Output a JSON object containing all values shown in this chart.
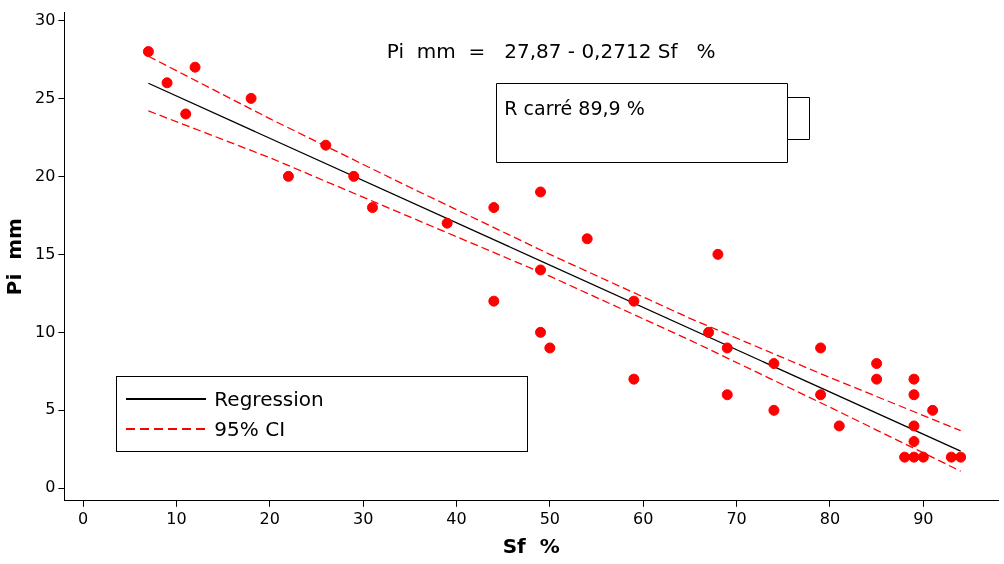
{
  "chart_data": {
    "type": "scatter",
    "xlabel": "Sf  %",
    "ylabel": "Pi  mm",
    "annotations": [
      "Pi  mm  =   27,87 - 0,2712 Sf   %",
      "R carré  89,9 %"
    ],
    "xlim": [
      -2,
      98
    ],
    "xticks": [
      0,
      10,
      20,
      30,
      40,
      50,
      60,
      70,
      80,
      90
    ],
    "ylim": [
      -0.8,
      30.5
    ],
    "yticks": [
      0,
      5,
      10,
      15,
      20,
      25,
      30
    ],
    "grid": false,
    "legend": "bottom left",
    "marker": "circle",
    "series": [
      {
        "type": "scatter",
        "color": "#ff0000",
        "x": [
          7,
          9,
          11,
          12,
          18,
          22,
          26,
          29,
          31,
          39,
          44,
          44,
          49,
          49,
          49,
          50,
          54,
          59,
          59,
          67,
          68,
          69,
          69,
          74,
          74,
          79,
          79,
          81,
          85,
          85,
          88,
          89,
          89,
          89,
          89,
          89,
          90,
          91,
          93,
          94
        ],
        "values": [
          28,
          26,
          24,
          27,
          25,
          20,
          22,
          20,
          18,
          17,
          12,
          18,
          19,
          14,
          10,
          9,
          16,
          12,
          7,
          10,
          15,
          9,
          6,
          8,
          5,
          9,
          6,
          4,
          8,
          7,
          2,
          7,
          6,
          4,
          3,
          2,
          2,
          5,
          2,
          2
        ]
      },
      {
        "type": "line",
        "name": "Regression",
        "color": "#000000",
        "line_style": "solid",
        "marker": "none",
        "x": [
          7,
          94
        ],
        "values": [
          25.97,
          2.38
        ]
      },
      {
        "type": "line",
        "name": "95% CI",
        "color": "#ff0000",
        "line_style": "dashed",
        "marker": "none",
        "x": [
          7,
          20,
          35,
          50,
          65,
          80,
          94
        ],
        "values": [
          27.7,
          23.7,
          19.3,
          15.0,
          10.9,
          7.1,
          3.7
        ]
      },
      {
        "type": "line",
        "color": "#ff0000",
        "line_style": "dashed",
        "marker": "none",
        "x": [
          7,
          20,
          35,
          50,
          65,
          80,
          94
        ],
        "values": [
          24.2,
          21.2,
          17.4,
          13.6,
          9.5,
          5.2,
          1.1
        ]
      }
    ]
  }
}
